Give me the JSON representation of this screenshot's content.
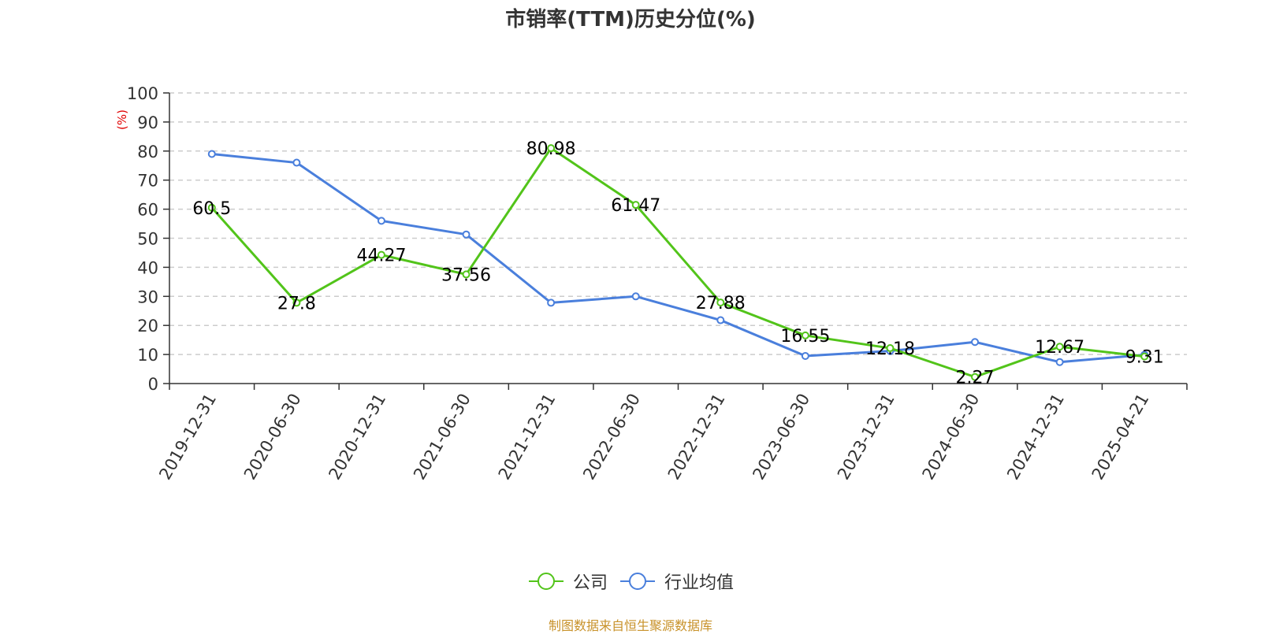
{
  "chart_data": {
    "type": "line",
    "title": "市销率(TTM)历史分位(%)",
    "ylabel": "(%)",
    "ylim": [
      0,
      100
    ],
    "yticks": [
      0,
      10,
      20,
      30,
      40,
      50,
      60,
      70,
      80,
      90,
      100
    ],
    "grid": true,
    "legend_position": "bottom",
    "categories": [
      "2019-12-31",
      "2020-06-30",
      "2020-12-31",
      "2021-06-30",
      "2021-12-31",
      "2022-06-30",
      "2022-12-31",
      "2023-06-30",
      "2023-12-31",
      "2024-06-30",
      "2024-12-31",
      "2025-04-21"
    ],
    "series": [
      {
        "name": "公司",
        "color": "#52c41a",
        "values": [
          60.5,
          27.8,
          44.27,
          37.56,
          80.98,
          61.47,
          27.88,
          16.55,
          12.18,
          2.27,
          12.67,
          9.31
        ],
        "labels": [
          "60.5",
          "27.8",
          "44.27",
          "37.56",
          "80.98",
          "61.47",
          "27.88",
          "16.55",
          "12.18",
          "2.27",
          "12.67",
          "9.31"
        ]
      },
      {
        "name": "行业均值",
        "color": "#4a7fdc",
        "values": [
          79,
          76,
          56,
          51.3,
          27.8,
          30,
          21.8,
          9.5,
          11.2,
          14.3,
          7.4,
          9.9
        ]
      }
    ]
  },
  "source_note": "制图数据来自恒生聚源数据库"
}
